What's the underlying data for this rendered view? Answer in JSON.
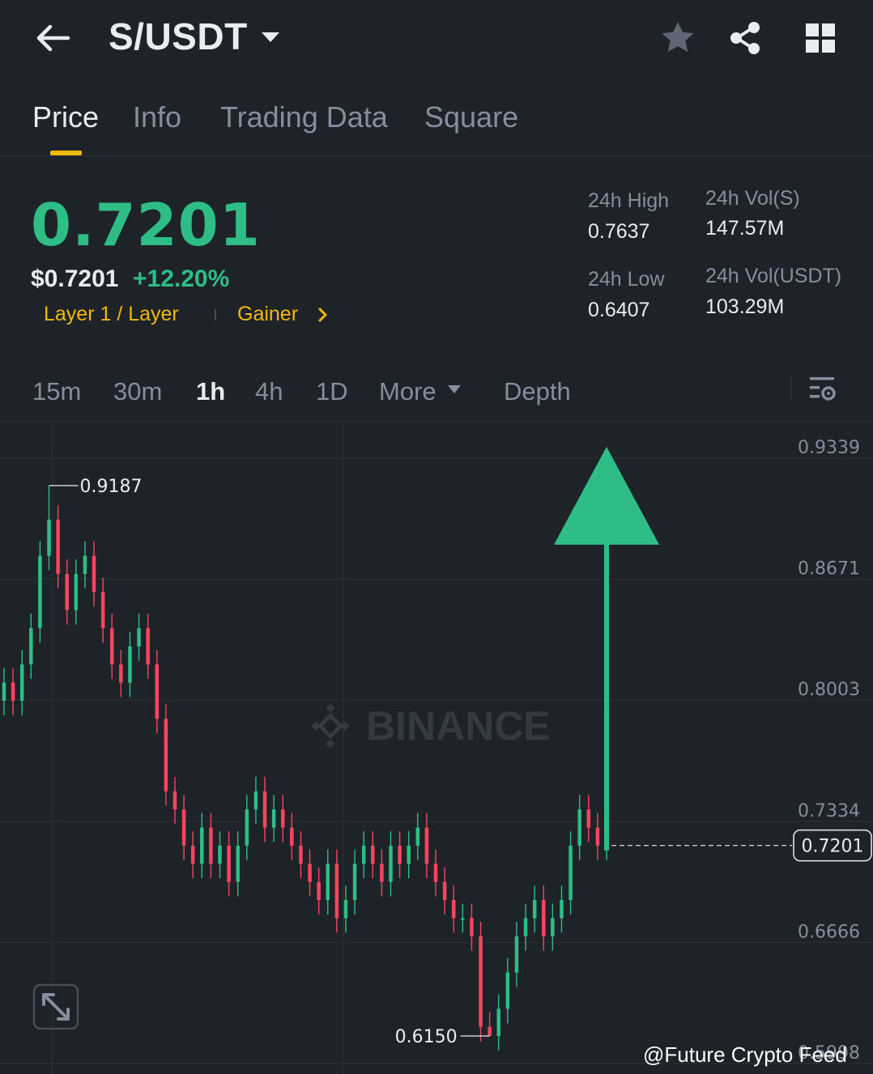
{
  "header": {
    "pair": "S/USDT",
    "icons": [
      "back-arrow-icon",
      "caret-down-icon",
      "star-icon",
      "share-icon",
      "grid-icon"
    ]
  },
  "tabs": [
    {
      "label": "Price",
      "active": true
    },
    {
      "label": "Info",
      "active": false
    },
    {
      "label": "Trading Data",
      "active": false
    },
    {
      "label": "Square",
      "active": false
    }
  ],
  "price": {
    "last": "0.7201",
    "usd": "$0.7201",
    "change": "+12.20%",
    "tag_category": "Layer 1 / Layer",
    "tag_rank": "Gainer"
  },
  "stats": {
    "high_label": "24h High",
    "high_value": "0.7637",
    "low_label": "24h Low",
    "low_value": "0.6407",
    "vol_s_label": "24h Vol(S)",
    "vol_s_value": "147.57M",
    "vol_usdt_label": "24h Vol(USDT)",
    "vol_usdt_value": "103.29M"
  },
  "intervals": [
    {
      "label": "15m",
      "active": false
    },
    {
      "label": "30m",
      "active": false
    },
    {
      "label": "1h",
      "active": true
    },
    {
      "label": "4h",
      "active": false
    },
    {
      "label": "1D",
      "active": false
    },
    {
      "label": "More",
      "active": false
    },
    {
      "label": "Depth",
      "active": false
    }
  ],
  "colors": {
    "up": "#2ebd85",
    "down": "#f6465d",
    "accent": "#f0b90b",
    "background": "#1e2329",
    "muted": "#848e9c"
  },
  "chart_data": {
    "type": "candlestick",
    "interval": "1h",
    "price_axis_labels": [
      "0.9339",
      "0.8671",
      "0.8003",
      "0.7334",
      "0.6666",
      "0.5998"
    ],
    "ylim": [
      0.5998,
      0.9339
    ],
    "high_marker": "0.9187",
    "low_marker": "0.6150",
    "current_price_label": "0.7201",
    "watermark": "BINANCE",
    "annotation": "green-up-arrow",
    "closes": [
      0.81,
      0.8,
      0.82,
      0.84,
      0.88,
      0.9,
      0.87,
      0.85,
      0.87,
      0.88,
      0.86,
      0.84,
      0.82,
      0.81,
      0.83,
      0.84,
      0.82,
      0.79,
      0.75,
      0.74,
      0.72,
      0.71,
      0.73,
      0.71,
      0.72,
      0.7,
      0.72,
      0.74,
      0.75,
      0.73,
      0.74,
      0.73,
      0.72,
      0.71,
      0.7,
      0.69,
      0.71,
      0.68,
      0.69,
      0.71,
      0.72,
      0.71,
      0.7,
      0.72,
      0.71,
      0.72,
      0.73,
      0.71,
      0.7,
      0.69,
      0.68,
      0.68,
      0.67,
      0.62,
      0.615,
      0.63,
      0.65,
      0.67,
      0.68,
      0.69,
      0.67,
      0.68,
      0.69,
      0.72,
      0.74,
      0.73,
      0.72,
      0.7201
    ],
    "series_high": 0.9187,
    "series_low": 0.615
  },
  "footer": {
    "watermark_text": "@Future Crypto Feed"
  }
}
